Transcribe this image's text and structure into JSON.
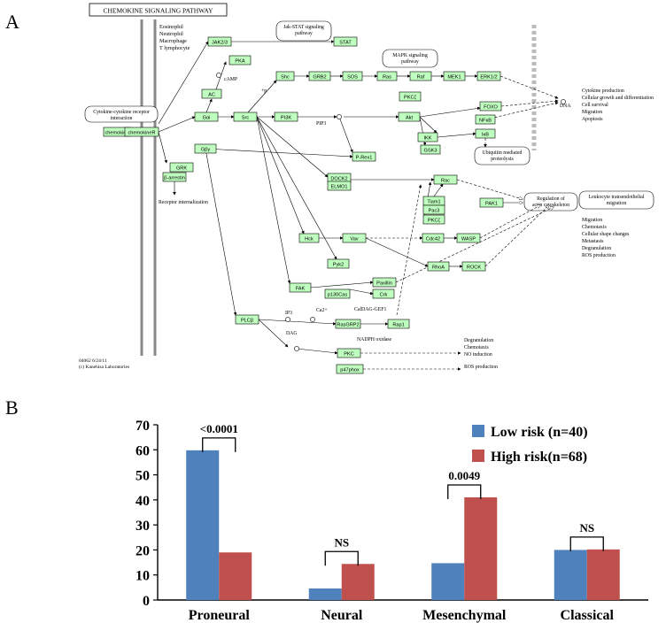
{
  "panel_a": {
    "panel_label": "A",
    "title": "CHEMOKINE SIGNALING PATHWAY",
    "cells": "Eosinophil\nNeutrophil\nMacrophage\nT lymphocyte",
    "footer": "04062 6/24/11\n(c) Kanehisa Laboratories",
    "genes": [
      "chemokine",
      "chemokineR",
      "GRK",
      "β-arrestin",
      "JAK2/3",
      "STAT",
      "PKA",
      "AC",
      "Gαi",
      "Gβγ",
      "Src",
      "Shc",
      "GRB2",
      "SOS",
      "Ras",
      "Raf",
      "MEK1",
      "ERK1/2",
      "PKCζ",
      "PI3K",
      "Akt",
      "FOXO",
      "NFκB",
      "IKK",
      "IκB",
      "GSK3",
      "P-Rex1",
      "DOCK2",
      "ELMO1",
      "Rac",
      "Tiam1",
      "Pac3",
      "PKCζ",
      "PAK1",
      "Cdc42",
      "WASP",
      "Hck",
      "Vav",
      "Pyk2",
      "RhoA",
      "ROCK",
      "FAK",
      "Paxillin",
      "p130Cas",
      "Crk",
      "PLCβ",
      "RasGRP2",
      "Rap1",
      "PKC",
      "p47phox"
    ],
    "pathway_labels": [
      "Jak-STAT signaling\npathway",
      "MAPK signaling\npathway",
      "Cytokine-cytokine receptor\ninteraction",
      "Ubiquitin mediated\nproteolysis",
      "Regulation of\nactin cytoskeleton",
      "Leukocyte transendothelial\nmigration"
    ],
    "small_labels": [
      "cAMP",
      "PIP3",
      "IP3",
      "Ca2+",
      "DAG",
      "CalDAG-GEF1",
      "NADPH oxidase",
      "Receptor internalization",
      "DNA",
      "+p"
    ],
    "outcomes": [
      "Cytokine production\nCellular growth and differentiation\nCell survival\nMigration\nApoptosis",
      "Migration\nChemotaxis\nCellular shape changes\nMetastasis\nDegranulation\nROS production",
      "Degranulation\nChemotaxis\nNO induction",
      "ROS production"
    ]
  },
  "panel_b": {
    "panel_label": "B",
    "colors": {
      "low": "#4f81bd",
      "high": "#c0504d"
    },
    "significance": [
      {
        "category": "Proneural",
        "label": "<0.0001"
      },
      {
        "category": "Neural",
        "label": "NS"
      },
      {
        "category": "Mesenchymal",
        "label": "0.0049"
      },
      {
        "category": "Classical",
        "label": "NS"
      }
    ]
  },
  "chart_data": {
    "type": "bar",
    "categories": [
      "Proneural",
      "Neural",
      "Mesenchymal",
      "Classical"
    ],
    "series": [
      {
        "name": "Low risk (n=40)",
        "values": [
          59.8,
          4.6,
          14.7,
          20.0
        ]
      },
      {
        "name": "High risk(n=68)",
        "values": [
          19.0,
          14.4,
          41.0,
          20.2
        ]
      }
    ],
    "ylim": [
      0,
      70
    ],
    "yticks": [
      0,
      10,
      20,
      30,
      40,
      50,
      60,
      70
    ],
    "grid": false,
    "legend": "top-right",
    "title": "",
    "xlabel": "",
    "ylabel": ""
  }
}
